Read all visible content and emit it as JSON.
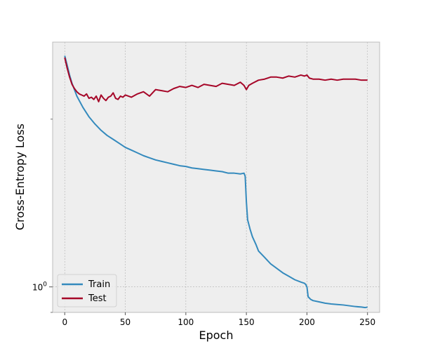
{
  "chart_data": {
    "type": "line",
    "title": "",
    "xlabel": "Epoch",
    "ylabel": "Cross-Entropy Loss",
    "xlim": [
      -10,
      260
    ],
    "ylim": [
      0.9,
      2.75
    ],
    "yscale": "log",
    "xticks": [
      0,
      50,
      100,
      150,
      200,
      250
    ],
    "xtick_labels": [
      "0",
      "50",
      "100",
      "150",
      "200",
      "250"
    ],
    "yticks": [
      1
    ],
    "ytick_labels": [
      "10",
      "0"
    ],
    "grid": true,
    "legend_position": "lower-left",
    "colors": {
      "plot_background": "#eeeeee",
      "grid": "#b0b0b0",
      "frame": "#bcbcbc",
      "train": "#348abd",
      "test": "#a60628"
    },
    "series": [
      {
        "name": "Train",
        "color": "#348abd",
        "x": [
          0,
          2,
          4,
          6,
          8,
          10,
          15,
          20,
          25,
          30,
          35,
          40,
          45,
          50,
          55,
          60,
          65,
          70,
          75,
          80,
          85,
          90,
          95,
          100,
          105,
          110,
          115,
          120,
          125,
          130,
          135,
          140,
          145,
          148,
          149,
          150,
          151,
          153,
          155,
          158,
          160,
          165,
          170,
          175,
          180,
          185,
          190,
          195,
          198,
          199,
          200,
          201,
          203,
          205,
          210,
          215,
          220,
          225,
          230,
          235,
          240,
          245,
          248,
          250
        ],
        "values": [
          2.6,
          2.5,
          2.4,
          2.32,
          2.26,
          2.2,
          2.1,
          2.02,
          1.96,
          1.91,
          1.87,
          1.84,
          1.81,
          1.78,
          1.76,
          1.74,
          1.72,
          1.705,
          1.69,
          1.68,
          1.67,
          1.66,
          1.65,
          1.645,
          1.635,
          1.63,
          1.625,
          1.62,
          1.615,
          1.61,
          1.6,
          1.6,
          1.595,
          1.6,
          1.58,
          1.42,
          1.32,
          1.27,
          1.23,
          1.19,
          1.16,
          1.13,
          1.1,
          1.08,
          1.06,
          1.045,
          1.03,
          1.02,
          1.015,
          1.01,
          1.0,
          0.96,
          0.95,
          0.945,
          0.94,
          0.935,
          0.932,
          0.93,
          0.928,
          0.925,
          0.922,
          0.92,
          0.918,
          0.92
        ]
      },
      {
        "name": "Test",
        "color": "#a60628",
        "x": [
          0,
          2,
          4,
          6,
          8,
          10,
          12,
          14,
          16,
          18,
          20,
          22,
          24,
          26,
          28,
          30,
          32,
          34,
          36,
          38,
          40,
          42,
          44,
          46,
          48,
          50,
          55,
          60,
          65,
          70,
          75,
          80,
          85,
          90,
          95,
          100,
          105,
          110,
          115,
          120,
          125,
          130,
          135,
          140,
          145,
          148,
          150,
          152,
          155,
          160,
          165,
          170,
          175,
          180,
          185,
          190,
          195,
          198,
          200,
          202,
          205,
          210,
          215,
          220,
          225,
          230,
          235,
          240,
          245,
          250
        ],
        "values": [
          2.58,
          2.47,
          2.38,
          2.31,
          2.27,
          2.24,
          2.22,
          2.21,
          2.2,
          2.22,
          2.18,
          2.19,
          2.17,
          2.2,
          2.15,
          2.21,
          2.18,
          2.16,
          2.19,
          2.2,
          2.23,
          2.18,
          2.17,
          2.2,
          2.19,
          2.21,
          2.19,
          2.22,
          2.24,
          2.2,
          2.26,
          2.25,
          2.24,
          2.27,
          2.29,
          2.28,
          2.3,
          2.28,
          2.31,
          2.3,
          2.29,
          2.32,
          2.31,
          2.3,
          2.33,
          2.3,
          2.26,
          2.3,
          2.32,
          2.35,
          2.36,
          2.38,
          2.38,
          2.37,
          2.39,
          2.38,
          2.4,
          2.39,
          2.4,
          2.37,
          2.36,
          2.36,
          2.35,
          2.36,
          2.35,
          2.36,
          2.36,
          2.36,
          2.35,
          2.35
        ]
      }
    ]
  }
}
